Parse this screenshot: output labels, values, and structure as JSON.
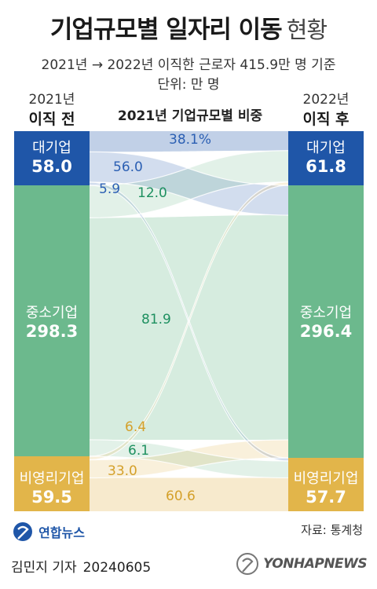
{
  "title": {
    "main": "기업규모별 일자리 이동",
    "sub": "현황"
  },
  "subtitle": "2021년 → 2022년 이직한 근로자 415.9만 명 기준",
  "unit_label": "단위: 만 명",
  "columns": {
    "left": {
      "year": "2021년",
      "label": "이직 전"
    },
    "middle": {
      "label": "2021년 기업규모별 비중"
    },
    "right": {
      "year": "2022년",
      "label": "이직 후"
    }
  },
  "colors": {
    "large": "#1f56a8",
    "sme": "#6cb98d",
    "nonprofit": "#e2b54a",
    "large_text": "#1f56a8",
    "sme_text": "#1e9060",
    "nonprofit_text": "#d4a02a"
  },
  "chart_data": {
    "type": "sankey",
    "unit": "만 명",
    "left_nodes": [
      {
        "id": "large",
        "name": "대기업",
        "value": "58.0"
      },
      {
        "id": "sme",
        "name": "중소기업",
        "value": "298.3"
      },
      {
        "id": "nonprofit",
        "name": "비영리기업",
        "value": "59.5"
      }
    ],
    "right_nodes": [
      {
        "id": "large",
        "name": "대기업",
        "value": "61.8"
      },
      {
        "id": "sme",
        "name": "중소기업",
        "value": "296.4"
      },
      {
        "id": "nonprofit",
        "name": "비영리기업",
        "value": "57.7"
      }
    ],
    "flows": [
      {
        "from": "large",
        "to": "large",
        "label": "38.1%",
        "value": 22.1
      },
      {
        "from": "large",
        "to": "sme",
        "label": "56.0",
        "value": 32.5
      },
      {
        "from": "large",
        "to": "nonprofit",
        "label": "5.9",
        "value": 3.4
      },
      {
        "from": "sme",
        "to": "large",
        "label": "12.0",
        "value": 35.8
      },
      {
        "from": "sme",
        "to": "sme",
        "label": "81.9",
        "value": 244.3
      },
      {
        "from": "sme",
        "to": "nonprofit",
        "label": "6.1",
        "value": 18.2
      },
      {
        "from": "nonprofit",
        "to": "large",
        "label": "6.4",
        "value": 3.8
      },
      {
        "from": "nonprofit",
        "to": "sme",
        "label": "33.0",
        "value": 19.6
      },
      {
        "from": "nonprofit",
        "to": "nonprofit",
        "label": "60.6",
        "value": 36.1
      }
    ]
  },
  "footer": {
    "logo_text": "연합뉴스",
    "source": "자료: 통계청",
    "reporter": "김민지 기자",
    "date": "20240605",
    "watermark": "YONHAPNEWS"
  }
}
